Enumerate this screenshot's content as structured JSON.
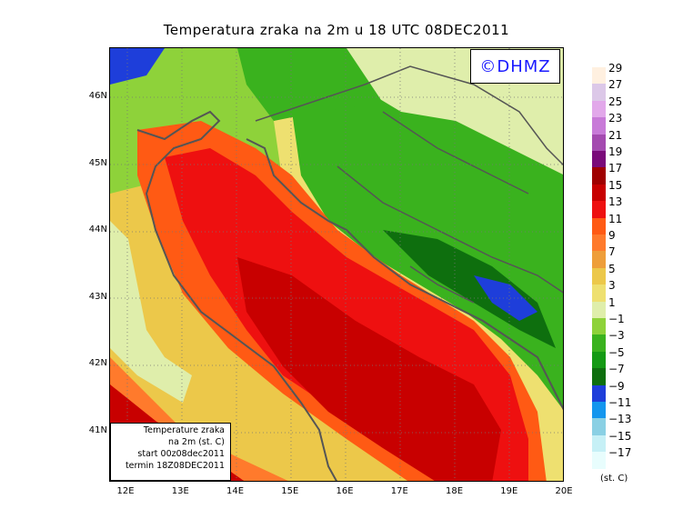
{
  "title": "Temperatura zraka na 2m u 18 UTC 08DEC2011",
  "logo_text": "©DHMZ",
  "info_box": {
    "line1": "Temperature zraka",
    "line2": "na 2m (st. C)",
    "line3": "start 00z08dec2011",
    "line4": "termin 18Z08DEC2011"
  },
  "x_ticks": [
    "12E",
    "13E",
    "14E",
    "15E",
    "16E",
    "17E",
    "18E",
    "19E",
    "20E"
  ],
  "y_ticks": [
    "46N",
    "45N",
    "44N",
    "43N",
    "42N",
    "41N"
  ],
  "legend": {
    "labels": [
      "29",
      "27",
      "25",
      "23",
      "21",
      "19",
      "17",
      "15",
      "13",
      "11",
      "9",
      "7",
      "5",
      "3",
      "1",
      "−1",
      "−3",
      "−5",
      "−7",
      "−9",
      "−11",
      "−13",
      "−15",
      "−17"
    ],
    "colors": [
      "#fff0e0",
      "#dcc8e8",
      "#e2a8ea",
      "#c87ad8",
      "#a44ab0",
      "#7a0a7a",
      "#a00000",
      "#c80000",
      "#ee1010",
      "#ff5a14",
      "#ff7a2c",
      "#ee9e3a",
      "#ecc84a",
      "#eee070",
      "#dfeeab",
      "#8ed23a",
      "#3ab21e",
      "#149a14",
      "#0e6f0e",
      "#1e3eda",
      "#1496ee",
      "#8ad0e4",
      "#c6f0f6",
      "#e8fdfd"
    ],
    "unit": "(st. C)"
  },
  "map": {
    "lon_range": [
      11.7,
      20.0
    ],
    "lat_range": [
      40.25,
      46.75
    ]
  }
}
